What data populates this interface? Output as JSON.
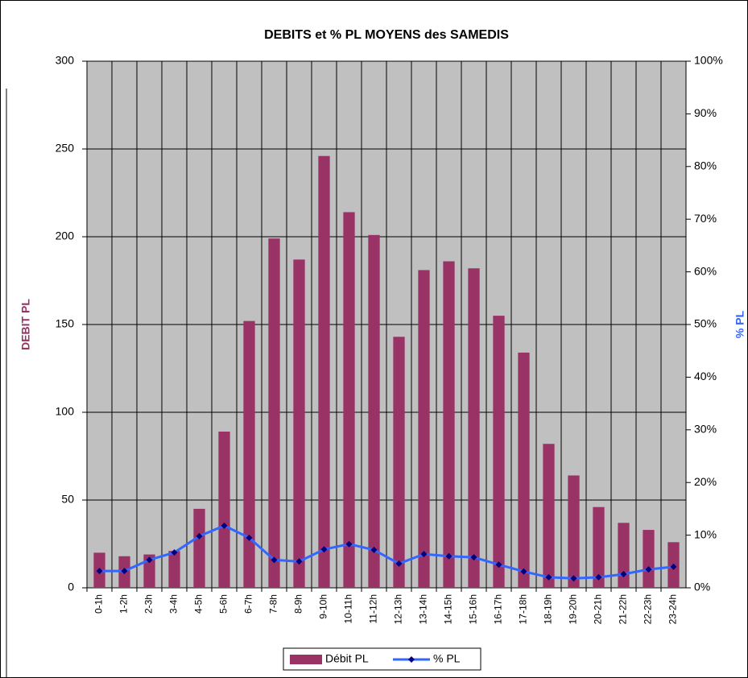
{
  "chart_data": {
    "type": "bar_line",
    "title": "DEBITS et % PL MOYENS des SAMEDIS",
    "y_label": "DEBIT PL",
    "y2_label": "% PL",
    "categories": [
      "0-1h",
      "1-2h",
      "2-3h",
      "3-4h",
      "4-5h",
      "5-6h",
      "6-7h",
      "7-8h",
      "8-9h",
      "9-10h",
      "10-11h",
      "11-12h",
      "12-13h",
      "13-14h",
      "14-15h",
      "15-16h",
      "16-17h",
      "17-18h",
      "18-19h",
      "19-20h",
      "20-21h",
      "21-22h",
      "22-23h",
      "23-24h"
    ],
    "series": [
      {
        "name": "Débit PL",
        "type": "bar",
        "color": "#993366",
        "values": [
          20,
          18,
          19,
          21,
          45,
          89,
          152,
          199,
          187,
          246,
          214,
          201,
          143,
          181,
          186,
          182,
          155,
          134,
          82,
          64,
          46,
          37,
          33,
          26
        ]
      },
      {
        "name": "% PL",
        "type": "line",
        "axis": "y2",
        "color": "#3366ff",
        "marker_color": "#000080",
        "values": [
          3.2,
          3.2,
          5.3,
          6.7,
          9.8,
          11.8,
          9.5,
          5.3,
          5.0,
          7.3,
          8.3,
          7.2,
          4.6,
          6.4,
          6.0,
          5.8,
          4.4,
          3.1,
          2.0,
          1.8,
          2.0,
          2.6,
          3.5,
          4.0
        ]
      }
    ],
    "ylim": [
      0,
      300
    ],
    "yticks": [
      0,
      50,
      100,
      150,
      200,
      250,
      300
    ],
    "y2lim": [
      0,
      100
    ],
    "y2ticks": [
      {
        "value": 0,
        "label": "0%"
      },
      {
        "value": 10,
        "label": "10%"
      },
      {
        "value": 20,
        "label": "20%"
      },
      {
        "value": 30,
        "label": "30%"
      },
      {
        "value": 40,
        "label": "40%"
      },
      {
        "value": 50,
        "label": "50%"
      },
      {
        "value": 60,
        "label": "60%"
      },
      {
        "value": 70,
        "label": "70%"
      },
      {
        "value": 80,
        "label": "80%"
      },
      {
        "value": 90,
        "label": "90%"
      },
      {
        "value": 100,
        "label": "100%"
      }
    ],
    "grid": true,
    "legend": "bottom"
  }
}
